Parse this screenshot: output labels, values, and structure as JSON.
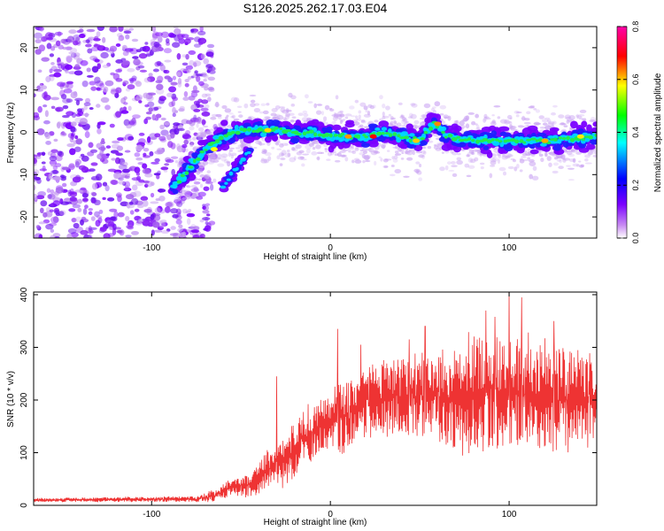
{
  "title": "S126.2025.262.17.03.E04",
  "chart_data": [
    {
      "type": "heatmap",
      "xlabel": "Height of straight line (km)",
      "ylabel": "Frequency (Hz)",
      "xlim": [
        -166,
        149
      ],
      "ylim": [
        -25,
        25
      ],
      "xticks": [
        -100,
        0,
        100
      ],
      "yticks": [
        -20,
        -10,
        0,
        10,
        20
      ],
      "colorbar": {
        "label": "Normalized spectral amplitude",
        "range": [
          0.0,
          0.8
        ],
        "ticks": [
          "0.0",
          "0.2",
          "0.4",
          "0.6",
          "0.8"
        ],
        "colors": [
          "#ffffff",
          "#c98cf2",
          "#7a00ff",
          "#0000ff",
          "#00ffff",
          "#00ff00",
          "#ffff00",
          "#ff0000",
          "#ff00aa"
        ]
      },
      "noise_region_km": [
        -166,
        -66
      ],
      "signal_ridge": {
        "x": [
          -88,
          -80,
          -70,
          -60,
          -50,
          -40,
          -30,
          -20,
          -10,
          0,
          10,
          20,
          30,
          40,
          50,
          55,
          58,
          65,
          80,
          100,
          120,
          149
        ],
        "freq": [
          -13,
          -9,
          -4,
          -1,
          0.5,
          0.5,
          0.5,
          0,
          0,
          -1,
          -1,
          -1,
          0,
          -1,
          -2,
          1,
          2,
          -1,
          -2,
          -2,
          -2,
          -1
        ]
      },
      "secondary_branch": {
        "x": [
          -60,
          -55,
          -50,
          -45
        ],
        "freq": [
          -13,
          -10,
          -7,
          -4
        ]
      }
    },
    {
      "type": "line",
      "xlabel": "Height of straight line (km)",
      "ylabel": "SNR (10 * v/v)",
      "xlim": [
        -166,
        149
      ],
      "ylim": [
        0,
        405
      ],
      "xticks": [
        -100,
        0,
        100
      ],
      "yticks": [
        0,
        100,
        200,
        300,
        400
      ],
      "color": "#ee3333",
      "envelope": {
        "x": [
          -166,
          -75,
          -65,
          -55,
          -45,
          -40,
          -35,
          -30,
          -25,
          -20,
          -15,
          -10,
          -5,
          0,
          10,
          20,
          30,
          40,
          50,
          60,
          70,
          80,
          90,
          100,
          110,
          120,
          130,
          140,
          149
        ],
        "baseline": [
          10,
          12,
          18,
          35,
          40,
          50,
          70,
          80,
          85,
          110,
          130,
          140,
          150,
          160,
          170,
          195,
          205,
          210,
          212,
          205,
          200,
          210,
          215,
          210,
          210,
          205,
          205,
          200,
          205
        ],
        "spread": [
          4,
          6,
          15,
          20,
          25,
          35,
          40,
          45,
          55,
          60,
          60,
          60,
          60,
          65,
          75,
          80,
          80,
          80,
          85,
          95,
          110,
          125,
          130,
          130,
          130,
          120,
          110,
          100,
          100
        ]
      },
      "peaks": [
        {
          "x": -30,
          "y": 245
        },
        {
          "x": 4,
          "y": 335
        },
        {
          "x": 17,
          "y": 305
        },
        {
          "x": 44,
          "y": 315
        },
        {
          "x": 53,
          "y": 340
        },
        {
          "x": 87,
          "y": 370
        },
        {
          "x": 92,
          "y": 358
        },
        {
          "x": 100,
          "y": 405
        },
        {
          "x": 107,
          "y": 395
        },
        {
          "x": 125,
          "y": 350
        }
      ]
    }
  ]
}
